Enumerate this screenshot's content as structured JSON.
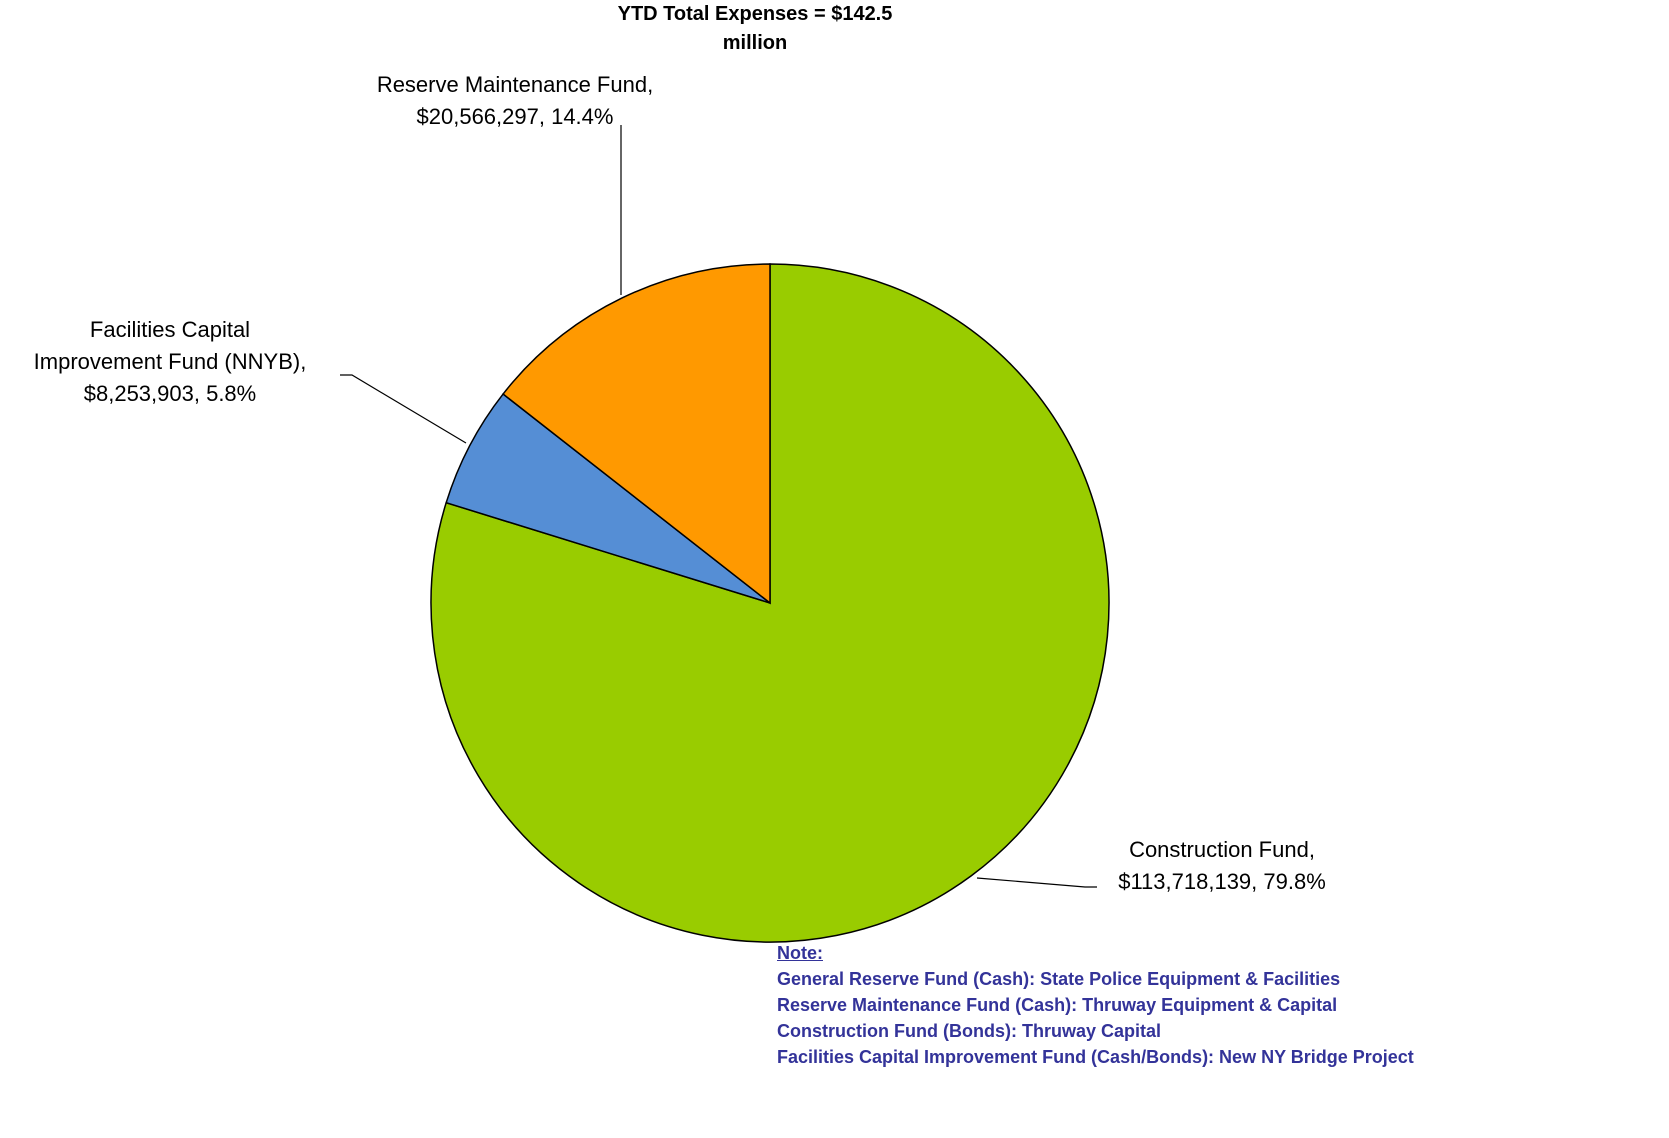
{
  "chart_data": {
    "type": "pie",
    "title": "YTD Total Expenses = $142.5\nmillion",
    "categories": [
      "Construction Fund,",
      "Facilities Capital\nImprovement Fund (NNYB),",
      "Reserve Maintenance Fund,"
    ],
    "values": [
      113718139,
      8253903,
      20566297
    ],
    "value_labels": [
      "$113,718,139, 79.8%",
      "$8,253,903, 5.8%",
      "$20,566,297, 14.4%"
    ],
    "colors": [
      "#99cc00",
      "#558ed5",
      "#ff9900"
    ],
    "note": {
      "heading": "Note:",
      "lines": [
        "General Reserve Fund (Cash): State Police Equipment & Facilities",
        "Reserve Maintenance Fund (Cash): Thruway Equipment & Capital",
        "Construction Fund (Bonds): Thruway Capital",
        "Facilities Capital Improvement Fund (Cash/Bonds): New NY Bridge Project"
      ]
    }
  }
}
